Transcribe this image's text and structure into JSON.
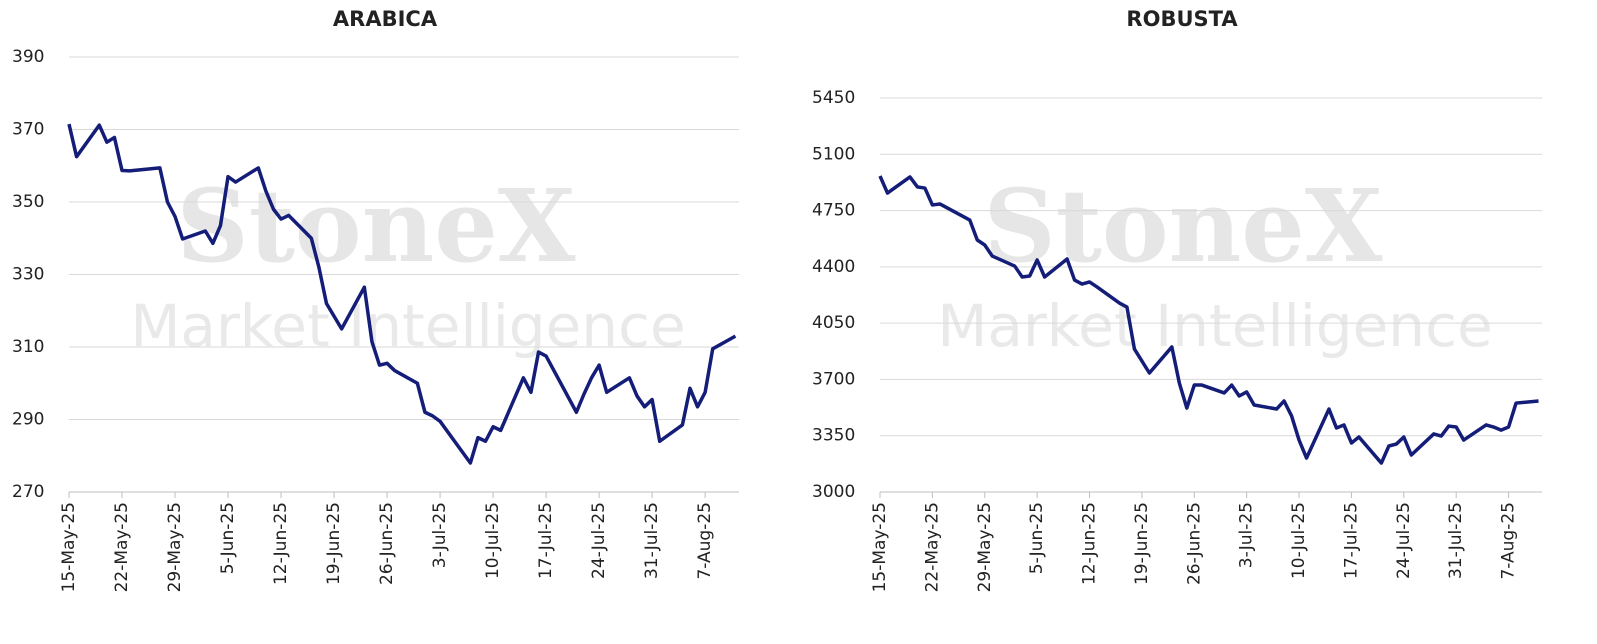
{
  "watermark": {
    "brand": "StoneX",
    "tagline": "Market Intelligence"
  },
  "chart_data": [
    {
      "type": "line",
      "title": "ARABICA",
      "color": "#141d78",
      "grid": true,
      "x": [
        "2025-05-15",
        "2025-05-16",
        "2025-05-19",
        "2025-05-20",
        "2025-05-21",
        "2025-05-22",
        "2025-05-23",
        "2025-05-27",
        "2025-05-28",
        "2025-05-29",
        "2025-05-30",
        "2025-06-02",
        "2025-06-03",
        "2025-06-04",
        "2025-06-05",
        "2025-06-06",
        "2025-06-09",
        "2025-06-10",
        "2025-06-11",
        "2025-06-12",
        "2025-06-13",
        "2025-06-16",
        "2025-06-17",
        "2025-06-18",
        "2025-06-20",
        "2025-06-23",
        "2025-06-24",
        "2025-06-25",
        "2025-06-26",
        "2025-06-27",
        "2025-06-30",
        "2025-07-01",
        "2025-07-02",
        "2025-07-03",
        "2025-07-07",
        "2025-07-08",
        "2025-07-09",
        "2025-07-10",
        "2025-07-11",
        "2025-07-14",
        "2025-07-15",
        "2025-07-16",
        "2025-07-17",
        "2025-07-21",
        "2025-07-22",
        "2025-07-23",
        "2025-07-24",
        "2025-07-25",
        "2025-07-28",
        "2025-07-29",
        "2025-07-30",
        "2025-07-31",
        "2025-08-01",
        "2025-08-04",
        "2025-08-05",
        "2025-08-06",
        "2025-08-07",
        "2025-08-08",
        "2025-08-11"
      ],
      "values": [
        371.5,
        362.5,
        371.2,
        366.5,
        367.8,
        358.7,
        358.6,
        359.4,
        350,
        346,
        339.8,
        342,
        338.6,
        343.5,
        357,
        355.5,
        359.4,
        353,
        348,
        345.3,
        346.3,
        340,
        332,
        322,
        315,
        326.5,
        311.5,
        305,
        305.5,
        303.5,
        300,
        292,
        291,
        289.5,
        278,
        285,
        284,
        288,
        287,
        301.5,
        297.5,
        308.6,
        307.5,
        292,
        297,
        301.5,
        305,
        297.5,
        301.5,
        296.5,
        293.5,
        295.5,
        284,
        288.5,
        298.6,
        293.5,
        297.5,
        309.5,
        313
      ],
      "xlim": [
        "2025-05-15",
        "2025-08-12"
      ],
      "xticks": [
        {
          "value": "2025-05-15",
          "label": "15-May-25"
        },
        {
          "value": "2025-05-22",
          "label": "22-May-25"
        },
        {
          "value": "2025-05-29",
          "label": "29-May-25"
        },
        {
          "value": "2025-06-05",
          "label": "5-Jun-25"
        },
        {
          "value": "2025-06-12",
          "label": "12-Jun-25"
        },
        {
          "value": "2025-06-19",
          "label": "19-Jun-25"
        },
        {
          "value": "2025-06-26",
          "label": "26-Jun-25"
        },
        {
          "value": "2025-07-03",
          "label": "3-Jul-25"
        },
        {
          "value": "2025-07-10",
          "label": "10-Jul-25"
        },
        {
          "value": "2025-07-17",
          "label": "17-Jul-25"
        },
        {
          "value": "2025-07-24",
          "label": "24-Jul-25"
        },
        {
          "value": "2025-07-31",
          "label": "31-Jul-25"
        },
        {
          "value": "2025-08-07",
          "label": "7-Aug-25"
        }
      ],
      "ylim": [
        270,
        390
      ],
      "yticks": [
        270,
        290,
        310,
        330,
        350,
        370,
        390
      ]
    },
    {
      "type": "line",
      "title": "ROBUSTA",
      "color": "#141d78",
      "grid": true,
      "x": [
        "2025-05-15",
        "2025-05-16",
        "2025-05-19",
        "2025-05-20",
        "2025-05-21",
        "2025-05-22",
        "2025-05-23",
        "2025-05-27",
        "2025-05-28",
        "2025-05-29",
        "2025-05-30",
        "2025-06-02",
        "2025-06-03",
        "2025-06-04",
        "2025-06-05",
        "2025-06-06",
        "2025-06-09",
        "2025-06-10",
        "2025-06-11",
        "2025-06-12",
        "2025-06-13",
        "2025-06-16",
        "2025-06-17",
        "2025-06-18",
        "2025-06-20",
        "2025-06-23",
        "2025-06-24",
        "2025-06-25",
        "2025-06-26",
        "2025-06-27",
        "2025-06-30",
        "2025-07-01",
        "2025-07-02",
        "2025-07-03",
        "2025-07-04",
        "2025-07-07",
        "2025-07-08",
        "2025-07-09",
        "2025-07-10",
        "2025-07-11",
        "2025-07-14",
        "2025-07-15",
        "2025-07-16",
        "2025-07-17",
        "2025-07-18",
        "2025-07-21",
        "2025-07-22",
        "2025-07-23",
        "2025-07-24",
        "2025-07-25",
        "2025-07-28",
        "2025-07-29",
        "2025-07-30",
        "2025-07-31",
        "2025-08-01",
        "2025-08-04",
        "2025-08-05",
        "2025-08-06",
        "2025-08-07",
        "2025-08-08",
        "2025-08-11"
      ],
      "values": [
        4965,
        4859,
        4959,
        4897,
        4890,
        4785,
        4791,
        4691,
        4567,
        4536,
        4467,
        4405,
        4337,
        4343,
        4443,
        4337,
        4449,
        4318,
        4293,
        4306,
        4275,
        4175,
        4150,
        3889,
        3740,
        3902,
        3678,
        3522,
        3665,
        3665,
        3616,
        3665,
        3597,
        3622,
        3541,
        3516,
        3566,
        3473,
        3323,
        3211,
        3516,
        3398,
        3417,
        3305,
        3342,
        3180,
        3286,
        3298,
        3342,
        3230,
        3361,
        3348,
        3410,
        3404,
        3323,
        3417,
        3404,
        3385,
        3404,
        3553,
        3566
      ],
      "xlim": [
        "2025-05-15",
        "2025-08-12"
      ],
      "xticks": [
        {
          "value": "2025-05-15",
          "label": "15-May-25"
        },
        {
          "value": "2025-05-22",
          "label": "22-May-25"
        },
        {
          "value": "2025-05-29",
          "label": "29-May-25"
        },
        {
          "value": "2025-06-05",
          "label": "5-Jun-25"
        },
        {
          "value": "2025-06-12",
          "label": "12-Jun-25"
        },
        {
          "value": "2025-06-19",
          "label": "19-Jun-25"
        },
        {
          "value": "2025-06-26",
          "label": "26-Jun-25"
        },
        {
          "value": "2025-07-03",
          "label": "3-Jul-25"
        },
        {
          "value": "2025-07-10",
          "label": "10-Jul-25"
        },
        {
          "value": "2025-07-17",
          "label": "17-Jul-25"
        },
        {
          "value": "2025-07-24",
          "label": "24-Jul-25"
        },
        {
          "value": "2025-07-31",
          "label": "31-Jul-25"
        },
        {
          "value": "2025-08-07",
          "label": "7-Aug-25"
        }
      ],
      "ylim": [
        3000,
        5450
      ],
      "yticks": [
        3000,
        3350,
        3700,
        4050,
        4400,
        4750,
        5100,
        5450
      ]
    }
  ]
}
